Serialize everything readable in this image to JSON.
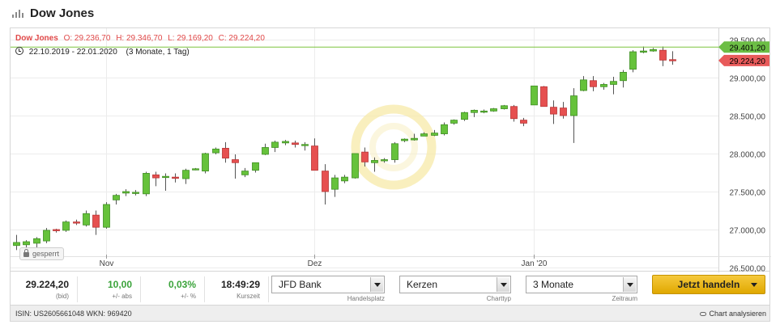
{
  "title": "Dow Jones",
  "legend": {
    "symbol": "Dow Jones",
    "open": "O: 29.236,70",
    "high": "H: 29.346,70",
    "low": "L: 29.169,20",
    "close": "C: 29.224,20",
    "period": "22.10.2019 - 22.01.2020",
    "period_detail": "(3 Monate, 1 Tag)"
  },
  "locked_label": "gesperrt",
  "price_tags": {
    "upper": "29.401,20",
    "current": "29.224,20"
  },
  "colors": {
    "up": "#66c23b",
    "down": "#e65050",
    "reference_line": "#7cc43f",
    "accent": "#f0b400"
  },
  "stats": [
    {
      "value": "29.224,20",
      "label": "(bid)",
      "color": "#222222"
    },
    {
      "value": "10,00",
      "label": "+/- abs",
      "color": "#3aa33a"
    },
    {
      "value": "0,03%",
      "label": "+/- %",
      "color": "#3aa33a"
    },
    {
      "value": "18:49:29",
      "label": "Kurszeit",
      "color": "#222222"
    }
  ],
  "selects": {
    "handelsplatz": {
      "value": "JFD Bank",
      "label": "Handelsplatz"
    },
    "charttyp": {
      "value": "Kerzen",
      "label": "Charttyp"
    },
    "zeitraum": {
      "value": "3 Monate",
      "label": "Zeitraum"
    }
  },
  "trade_button": "Jetzt handeln",
  "footer": {
    "isin": "ISIN: US2605661048 WKN: 969420",
    "analyze": "Chart analysieren"
  },
  "chart_data": {
    "type": "candlestick",
    "x_ticks": [
      "Nov",
      "Dez",
      "Jan '20"
    ],
    "x_tick_index": [
      9,
      30,
      52
    ],
    "y_ticks": [
      "26.500,00",
      "27.000,00",
      "27.500,00",
      "28.000,00",
      "28.500,00",
      "29.000,00",
      "29.500,00"
    ],
    "ylim": [
      26500,
      29500
    ],
    "grid": true,
    "reference_level": 29401.2,
    "ohlc": [
      [
        26790,
        26930,
        26730,
        26830
      ],
      [
        26800,
        26860,
        26750,
        26840
      ],
      [
        26820,
        26900,
        26760,
        26880
      ],
      [
        26850,
        27020,
        26820,
        26990
      ],
      [
        27000,
        27010,
        26960,
        26990
      ],
      [
        26990,
        27120,
        26970,
        27100
      ],
      [
        27100,
        27130,
        27060,
        27090
      ],
      [
        27060,
        27250,
        27040,
        27210
      ],
      [
        27190,
        27250,
        26930,
        27030
      ],
      [
        27030,
        27360,
        27010,
        27330
      ],
      [
        27390,
        27470,
        27330,
        27450
      ],
      [
        27480,
        27530,
        27440,
        27500
      ],
      [
        27480,
        27520,
        27450,
        27490
      ],
      [
        27470,
        27760,
        27440,
        27740
      ],
      [
        27720,
        27760,
        27570,
        27680
      ],
      [
        27690,
        27740,
        27510,
        27700
      ],
      [
        27690,
        27740,
        27620,
        27680
      ],
      [
        27670,
        27800,
        27600,
        27780
      ],
      [
        27800,
        27810,
        27780,
        27800
      ],
      [
        27770,
        28010,
        27740,
        28000
      ],
      [
        28010,
        28080,
        27990,
        28060
      ],
      [
        28070,
        28150,
        27880,
        27940
      ],
      [
        27920,
        27990,
        27670,
        27880
      ],
      [
        27720,
        27810,
        27690,
        27770
      ],
      [
        27780,
        27880,
        27750,
        27880
      ],
      [
        27990,
        28130,
        27980,
        28080
      ],
      [
        28080,
        28170,
        28020,
        28150
      ],
      [
        28140,
        28180,
        28110,
        28160
      ],
      [
        28140,
        28170,
        28080,
        28120
      ],
      [
        28110,
        28150,
        28040,
        28120
      ],
      [
        28100,
        28200,
        27780,
        27780
      ],
      [
        27770,
        27860,
        27330,
        27500
      ],
      [
        27530,
        27720,
        27430,
        27680
      ],
      [
        27640,
        27720,
        27610,
        27690
      ],
      [
        27680,
        28000,
        27670,
        28000
      ],
      [
        28020,
        28080,
        27830,
        27890
      ],
      [
        27880,
        27950,
        27760,
        27910
      ],
      [
        27920,
        27940,
        27880,
        27920
      ],
      [
        27920,
        28150,
        27880,
        28130
      ],
      [
        28170,
        28200,
        28150,
        28190
      ],
      [
        28180,
        28260,
        28170,
        28200
      ],
      [
        28230,
        28280,
        28230,
        28260
      ],
      [
        28240,
        28310,
        28230,
        28270
      ],
      [
        28260,
        28410,
        28240,
        28380
      ],
      [
        28400,
        28450,
        28380,
        28440
      ],
      [
        28450,
        28550,
        28430,
        28540
      ],
      [
        28540,
        28580,
        28480,
        28570
      ],
      [
        28560,
        28580,
        28530,
        28560
      ],
      [
        28560,
        28600,
        28550,
        28590
      ],
      [
        28590,
        28640,
        28580,
        28630
      ],
      [
        28620,
        28640,
        28420,
        28460
      ],
      [
        28440,
        28470,
        28360,
        28400
      ],
      [
        28640,
        28890,
        28640,
        28890
      ],
      [
        28880,
        28890,
        28620,
        28620
      ],
      [
        28610,
        28700,
        28390,
        28520
      ],
      [
        28600,
        28680,
        28460,
        28500
      ],
      [
        28500,
        28860,
        28140,
        28760
      ],
      [
        28830,
        29020,
        28820,
        28970
      ],
      [
        28960,
        29020,
        28820,
        28880
      ],
      [
        28880,
        28930,
        28840,
        28910
      ],
      [
        28910,
        29010,
        28780,
        28950
      ],
      [
        28960,
        29100,
        28870,
        29070
      ],
      [
        29110,
        29360,
        29070,
        29340
      ],
      [
        29340,
        29410,
        29320,
        29350
      ],
      [
        29350,
        29390,
        29340,
        29370
      ],
      [
        29360,
        29410,
        29150,
        29230
      ],
      [
        29236.7,
        29346.7,
        29169.2,
        29224.2
      ]
    ]
  }
}
